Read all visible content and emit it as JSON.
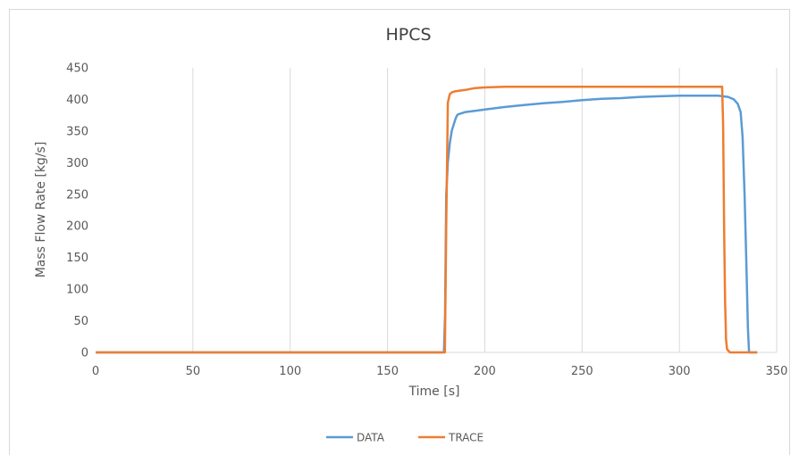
{
  "chart_data": {
    "type": "line",
    "title": "HPCS",
    "xlabel": "Time [s]",
    "ylabel": "Mass Flow Rate [kg/s]",
    "xlim": [
      0,
      350
    ],
    "ylim": [
      0,
      450
    ],
    "xticks": [
      0,
      50,
      100,
      150,
      200,
      250,
      300,
      350
    ],
    "yticks": [
      0,
      50,
      100,
      150,
      200,
      250,
      300,
      350,
      400,
      450
    ],
    "grid": "vertical",
    "legend": "bottom",
    "series": [
      {
        "name": "DATA",
        "color": "#5b9bd5",
        "x": [
          0,
          179,
          179.6,
          180.2,
          181,
          182,
          183,
          184,
          185,
          186,
          187,
          190,
          195,
          200,
          210,
          220,
          230,
          240,
          250,
          260,
          270,
          280,
          290,
          300,
          310,
          320,
          325,
          328,
          330,
          331.5,
          332.5,
          333.5,
          334.5,
          335.2,
          335.8,
          340
        ],
        "y": [
          0,
          0,
          60,
          250,
          300,
          330,
          350,
          360,
          370,
          376,
          377,
          380,
          382,
          384,
          388,
          391,
          394,
          396,
          399,
          401,
          402,
          404,
          405,
          406,
          406,
          406,
          404,
          400,
          393,
          380,
          340,
          250,
          130,
          40,
          0,
          0
        ]
      },
      {
        "name": "TRACE",
        "color": "#ed7d31",
        "x": [
          0,
          179.5,
          180.2,
          181,
          182,
          183,
          185,
          190,
          195,
          200,
          210,
          250,
          300,
          322,
          322.5,
          323,
          323.5,
          324,
          324.5,
          326,
          340
        ],
        "y": [
          0,
          0,
          200,
          395,
          408,
          411,
          413,
          415,
          418,
          419,
          420,
          420,
          420,
          420,
          360,
          200,
          80,
          20,
          5,
          0,
          0
        ]
      }
    ]
  }
}
